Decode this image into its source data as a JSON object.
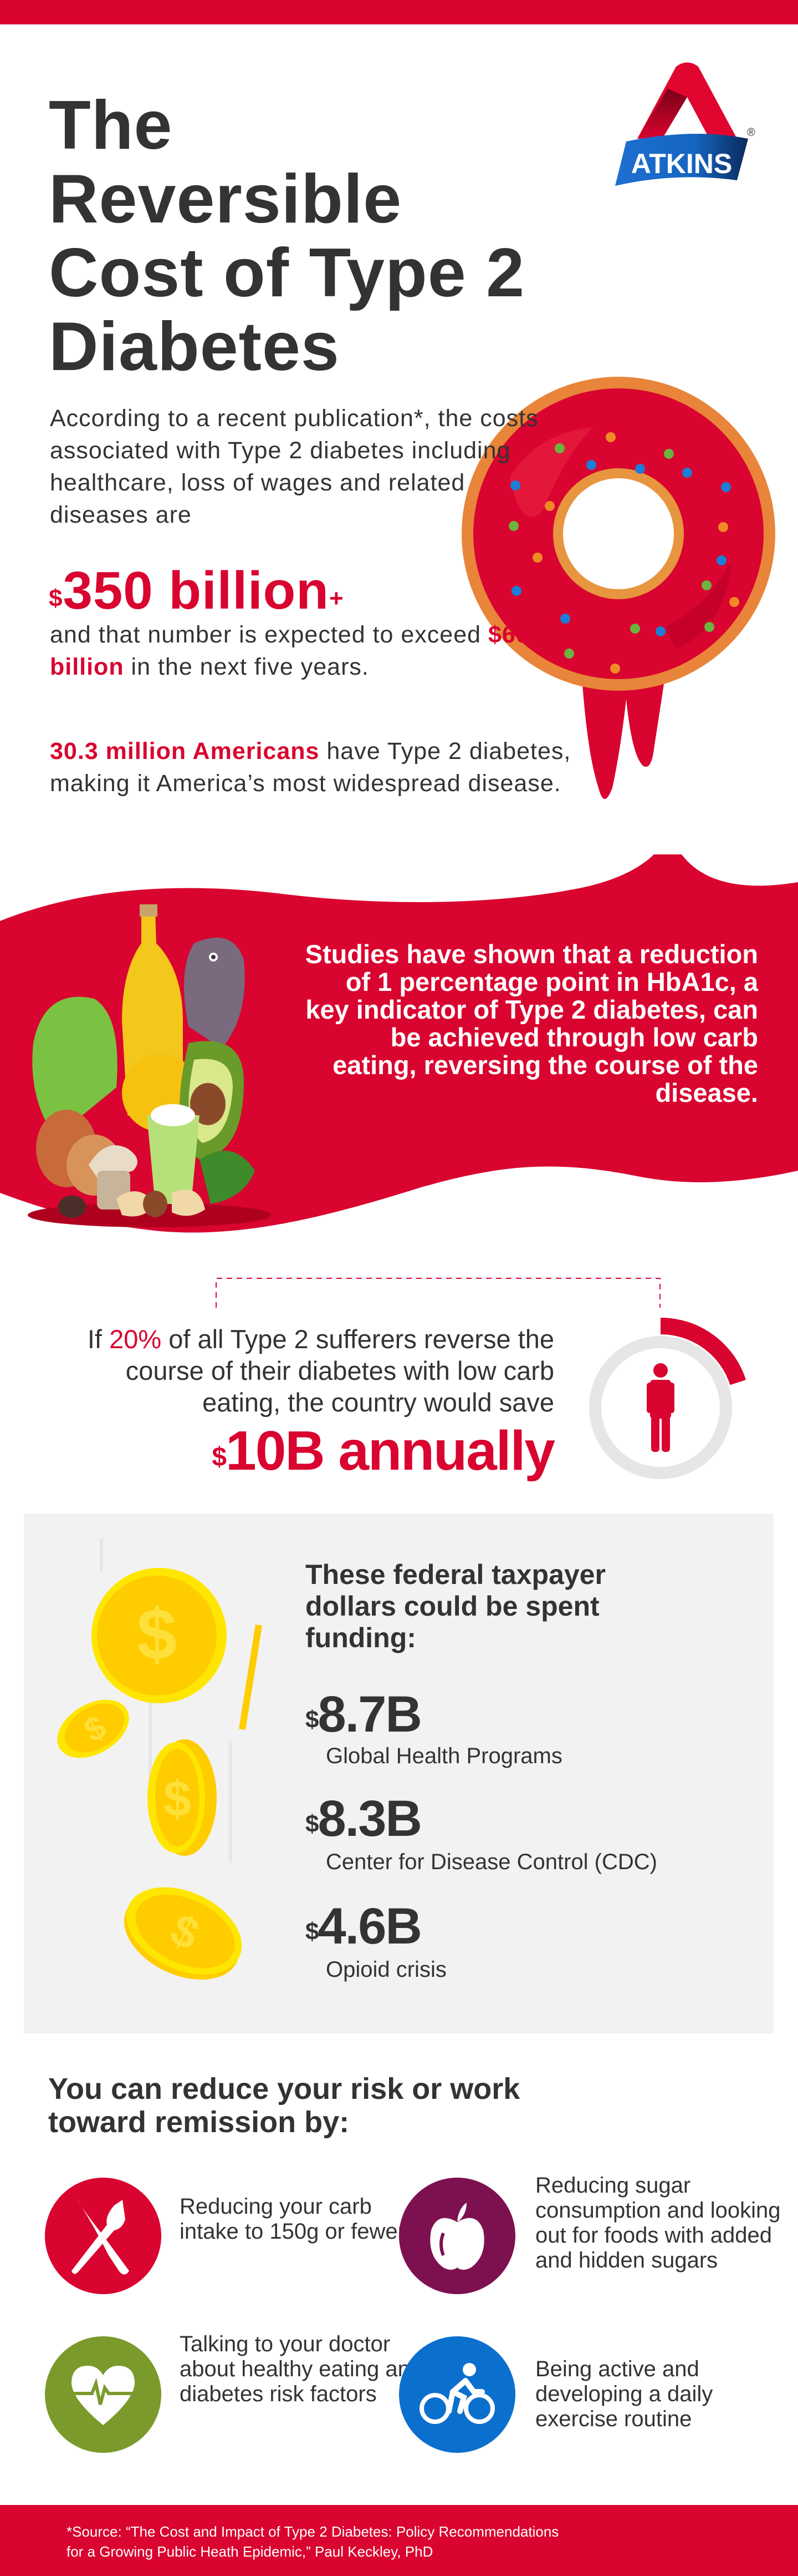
{
  "colors": {
    "brand_red": "#d9042f",
    "text_dark": "#333333",
    "panel_gray": "#f2f2f2",
    "purple": "#7d1150",
    "green": "#7a9a2c",
    "blue": "#0b6fce",
    "coin_yellow": "#ffd000",
    "logo_blue": "#1565c0"
  },
  "logo": {
    "text": "ATKINS",
    "registered": "®"
  },
  "title": {
    "lines": [
      "The",
      "Reversible",
      "Cost of Type 2",
      "Diabetes"
    ]
  },
  "intro": {
    "text": "According to a recent publication*, the costs associated with Type 2 diabetes including healthcare, loss of wages and related diseases are",
    "big_dollar": "$",
    "big_value": "350 billion",
    "big_plus": "+",
    "after_1": "and that number is expected to exceed ",
    "after_highlight": "$600 billion",
    "after_2": " in the next five years.",
    "americans_highlight": "30.3 million Americans",
    "americans_rest": " have Type 2 diabetes, making it America’s most widespread disease."
  },
  "studies": {
    "text": "Studies have shown that a reduction of 1 percentage point in HbA1c, a key indicator of Type 2 diabetes, can be achieved through low carb eating, reversing the course of the disease."
  },
  "savings": {
    "pre": "If ",
    "percent": "20%",
    "post": " of all Type 2 sufferers reverse the course of their diabetes with low carb eating, the country would save",
    "dollar": "$",
    "amount": "10B annually",
    "ring_fill_percent": 20
  },
  "federal": {
    "heading": "These federal taxpayer dollars could be spent funding:",
    "items": [
      {
        "dollar": "$",
        "amount": "8.7B",
        "label": "Global Health Programs"
      },
      {
        "dollar": "$",
        "amount": "8.3B",
        "label": "Center for Disease Control (CDC)"
      },
      {
        "dollar": "$",
        "amount": "4.6B",
        "label": "Opioid crisis"
      }
    ]
  },
  "remission": {
    "heading": "You can reduce your risk or work toward remission by:",
    "tips": [
      {
        "icon": "fork-knife-icon",
        "text": "Reducing your carb intake to 150g or fewer"
      },
      {
        "icon": "apple-icon",
        "text": "Reducing sugar consumption and looking out for foods with added and hidden sugars"
      },
      {
        "icon": "heart-pulse-icon",
        "text": "Talking to your doctor about healthy eating and diabetes risk factors"
      },
      {
        "icon": "cyclist-icon",
        "text": "Being active and developing a daily exercise routine"
      }
    ]
  },
  "footer": {
    "source_line1": "*Source: “The Cost and Impact of Type 2 Diabetes: Policy Recommendations",
    "source_line2": "for a Growing Public Heath Epidemic,” Paul Keckley, PhD"
  }
}
